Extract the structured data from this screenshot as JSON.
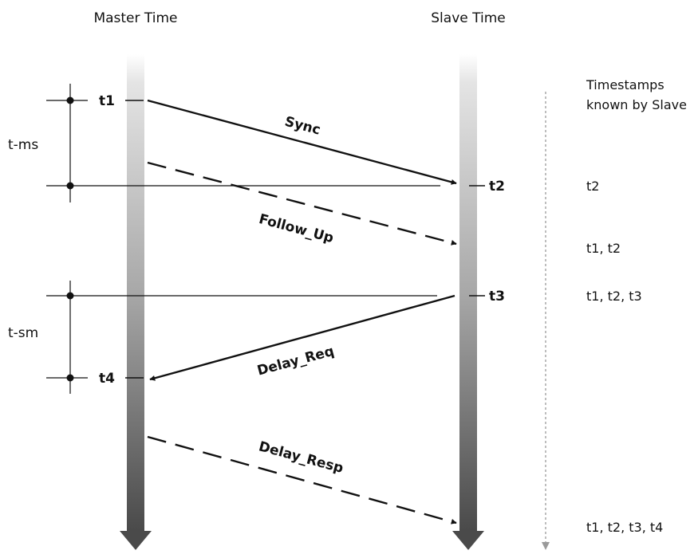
{
  "headers": {
    "master": "Master Time",
    "slave": "Slave Time",
    "known_line1": "Timestamps",
    "known_line2": "known by Slave"
  },
  "intervals": {
    "master_to_slave": "t-ms",
    "slave_to_master": "t-sm"
  },
  "timestamps": {
    "t1": "t1",
    "t2": "t2",
    "t3": "t3",
    "t4": "t4"
  },
  "messages": [
    {
      "label": "Sync",
      "style": "solid",
      "direction": "master-to-slave"
    },
    {
      "label": "Follow_Up",
      "style": "dashed",
      "direction": "master-to-slave"
    },
    {
      "label": "Delay_Req",
      "style": "solid",
      "direction": "slave-to-master"
    },
    {
      "label": "Delay_Resp",
      "style": "dashed",
      "direction": "master-to-slave"
    }
  ],
  "known": [
    "t2",
    "t1, t2",
    "t1, t2, t3",
    "t1, t2, t3, t4"
  ],
  "colors": {
    "line": "#111111",
    "bar_top": "#e4e4e4",
    "bar_bottom": "#4a4a4a",
    "time_arrow": "#9a9a9a"
  }
}
